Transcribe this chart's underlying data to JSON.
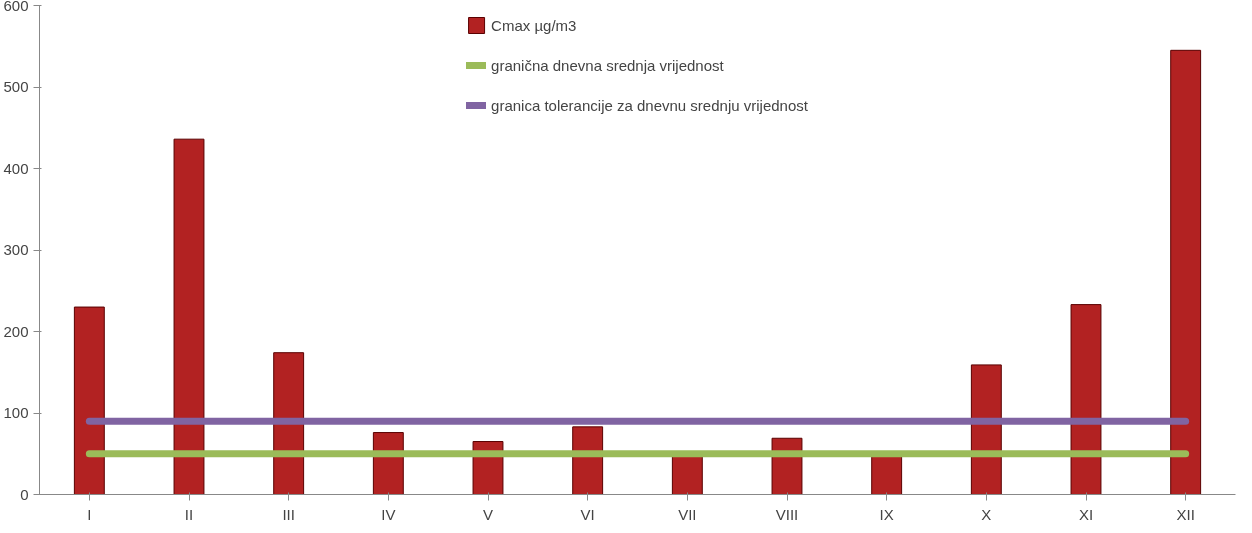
{
  "chart_data": {
    "type": "bar",
    "categories": [
      "I",
      "II",
      "III",
      "IV",
      "V",
      "VI",
      "VII",
      "VIII",
      "IX",
      "X",
      "XI",
      "XII"
    ],
    "series": [
      {
        "name": "Cmax µg/m3",
        "color": "#b22222",
        "values": [
          230,
          436,
          174,
          76,
          65,
          83,
          50,
          69,
          50,
          159,
          233,
          545
        ]
      },
      {
        "name": "granična dnevna srednja vrijednost",
        "type": "line",
        "color": "#9bbb59",
        "values": [
          50,
          50,
          50,
          50,
          50,
          50,
          50,
          50,
          50,
          50,
          50,
          50
        ]
      },
      {
        "name": "granica tolerancije za dnevnu srednju vrijednost",
        "type": "line",
        "color": "#8064a2",
        "values": [
          90,
          90,
          90,
          90,
          90,
          90,
          90,
          90,
          90,
          90,
          90,
          90
        ]
      }
    ],
    "ylim": [
      0,
      600
    ],
    "yticks": [
      0,
      100,
      200,
      300,
      400,
      500,
      600
    ],
    "grid": false,
    "legend": "top"
  }
}
